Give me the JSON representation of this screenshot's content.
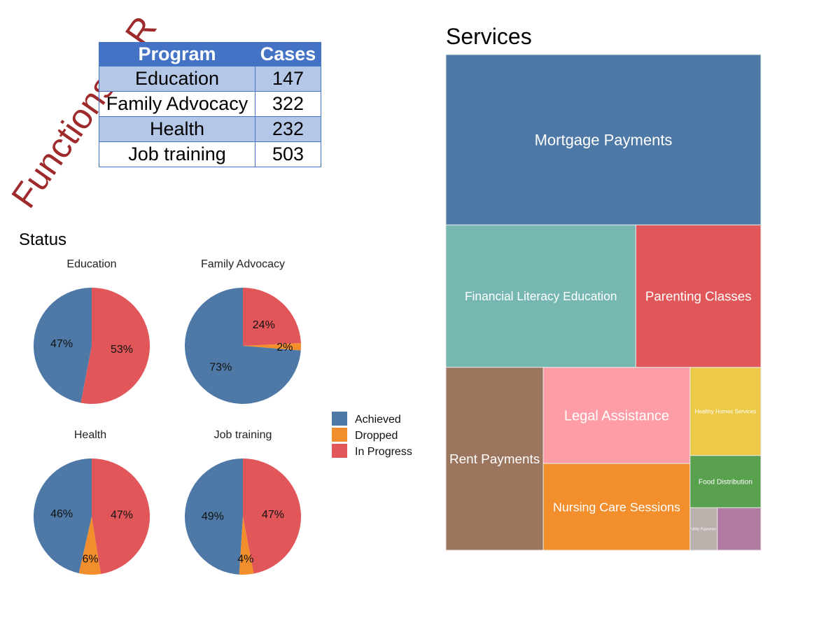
{
  "banner_text": "Functions in R",
  "table": {
    "headers": [
      "Program",
      "Cases"
    ],
    "rows": [
      {
        "program": "Education",
        "cases": "147"
      },
      {
        "program": "Family Advocacy",
        "cases": "322"
      },
      {
        "program": "Health",
        "cases": "232"
      },
      {
        "program": "Job training",
        "cases": "503"
      }
    ]
  },
  "colors": {
    "Achieved": "#4e79a7",
    "Dropped": "#f28e2b",
    "In Progress": "#e15759",
    "banner": "#9e2a2b",
    "table_header": "#4472c4",
    "table_band": "#b4c7e7"
  },
  "chart_data": [
    {
      "type": "pie",
      "title": "Status",
      "legend_position": "right",
      "legend": [
        "Achieved",
        "Dropped",
        "In Progress"
      ],
      "panels": [
        {
          "name": "Education",
          "slices": [
            {
              "label": "Achieved",
              "value": 47,
              "text": "47%"
            },
            {
              "label": "In Progress",
              "value": 53,
              "text": "53%"
            }
          ]
        },
        {
          "name": "Family Advocacy",
          "slices": [
            {
              "label": "Achieved",
              "value": 73,
              "text": "73%"
            },
            {
              "label": "Dropped",
              "value": 2,
              "text": "2%"
            },
            {
              "label": "In Progress",
              "value": 24,
              "text": "24%"
            }
          ]
        },
        {
          "name": "Health",
          "slices": [
            {
              "label": "Achieved",
              "value": 46,
              "text": "46%"
            },
            {
              "label": "Dropped",
              "value": 6,
              "text": "6%"
            },
            {
              "label": "In Progress",
              "value": 47,
              "text": "47%"
            }
          ]
        },
        {
          "name": "Job training",
          "slices": [
            {
              "label": "Achieved",
              "value": 49,
              "text": "49%"
            },
            {
              "label": "Dropped",
              "value": 4,
              "text": "4%"
            },
            {
              "label": "In Progress",
              "value": 47,
              "text": "47%"
            }
          ]
        }
      ]
    },
    {
      "type": "treemap",
      "title": "Services",
      "items": [
        {
          "name": "Mortgage Payments",
          "value": 232,
          "color": "#4e79a7"
        },
        {
          "name": "Financial Literacy Education",
          "value": 117,
          "color": "#76b7b2"
        },
        {
          "name": "Parenting Classes",
          "value": 77,
          "color": "#e15759"
        },
        {
          "name": "Rent Payments",
          "value": 77,
          "color": "#9c755f"
        },
        {
          "name": "Legal Assistance",
          "value": 61,
          "color": "#ff9da7"
        },
        {
          "name": "Nursing Care Sessions",
          "value": 55,
          "color": "#f28e2b"
        },
        {
          "name": "Healthy Homes Services",
          "value": 27,
          "color": "#edc948"
        },
        {
          "name": "Food Distribution",
          "value": 16,
          "color": "#59a14f"
        },
        {
          "name": "Utility Payments",
          "value": 5,
          "color": "#bab0ac"
        },
        {
          "name": "",
          "value": 8,
          "color": "#b07aa1"
        }
      ]
    }
  ]
}
